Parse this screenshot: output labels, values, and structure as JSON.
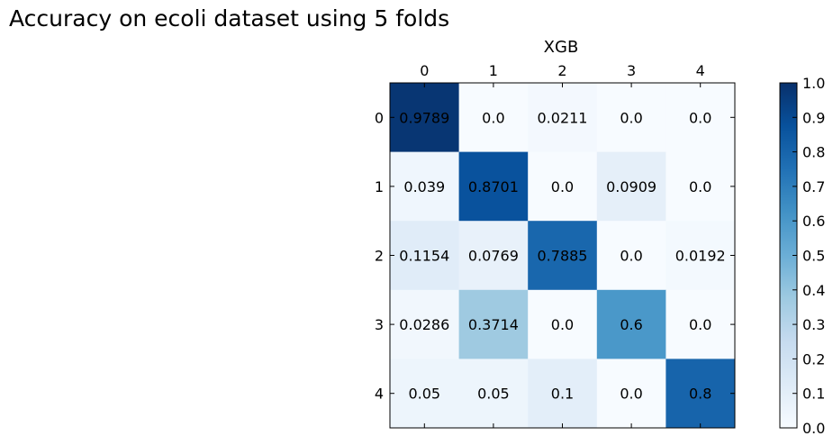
{
  "title": "Accuracy on ecoli dataset using 5 folds",
  "chart_data": {
    "type": "heatmap",
    "subtitle": "XGB",
    "x_tick_labels": [
      "0",
      "1",
      "2",
      "3",
      "4"
    ],
    "y_tick_labels": [
      "0",
      "1",
      "2",
      "3",
      "4"
    ],
    "cell_labels": [
      [
        "0.9789",
        "0.0",
        "0.0211",
        "0.0",
        "0.0"
      ],
      [
        "0.039",
        "0.8701",
        "0.0",
        "0.0909",
        "0.0"
      ],
      [
        "0.1154",
        "0.0769",
        "0.7885",
        "0.0",
        "0.0192"
      ],
      [
        "0.0286",
        "0.3714",
        "0.0",
        "0.6",
        "0.0"
      ],
      [
        "0.05",
        "0.05",
        "0.1",
        "0.0",
        "0.8"
      ]
    ],
    "values": [
      [
        0.9789,
        0.0,
        0.0211,
        0.0,
        0.0
      ],
      [
        0.039,
        0.8701,
        0.0,
        0.0909,
        0.0
      ],
      [
        0.1154,
        0.0769,
        0.7885,
        0.0,
        0.0192
      ],
      [
        0.0286,
        0.3714,
        0.0,
        0.6,
        0.0
      ],
      [
        0.05,
        0.05,
        0.1,
        0.0,
        0.8
      ]
    ],
    "colormap": "Blues",
    "colormap_stops": [
      "#f7fbff",
      "#deebf7",
      "#c6dbef",
      "#9ecae1",
      "#6baed6",
      "#4292c6",
      "#2171b5",
      "#08519c",
      "#08306b"
    ],
    "colorbar_range": [
      0.0,
      1.0
    ],
    "colorbar_ticks": [
      "0.0",
      "0.1",
      "0.2",
      "0.3",
      "0.4",
      "0.5",
      "0.6",
      "0.7",
      "0.8",
      "0.9",
      "1.0"
    ],
    "x_ticks_position": "top"
  }
}
